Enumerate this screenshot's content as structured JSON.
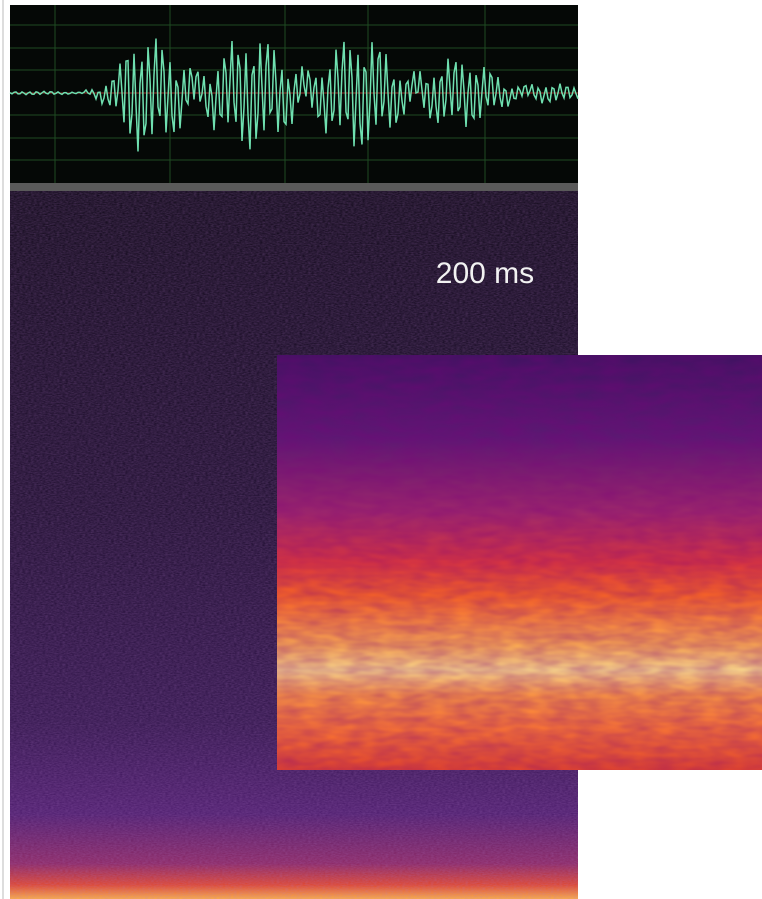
{
  "label": "200 ms"
}
